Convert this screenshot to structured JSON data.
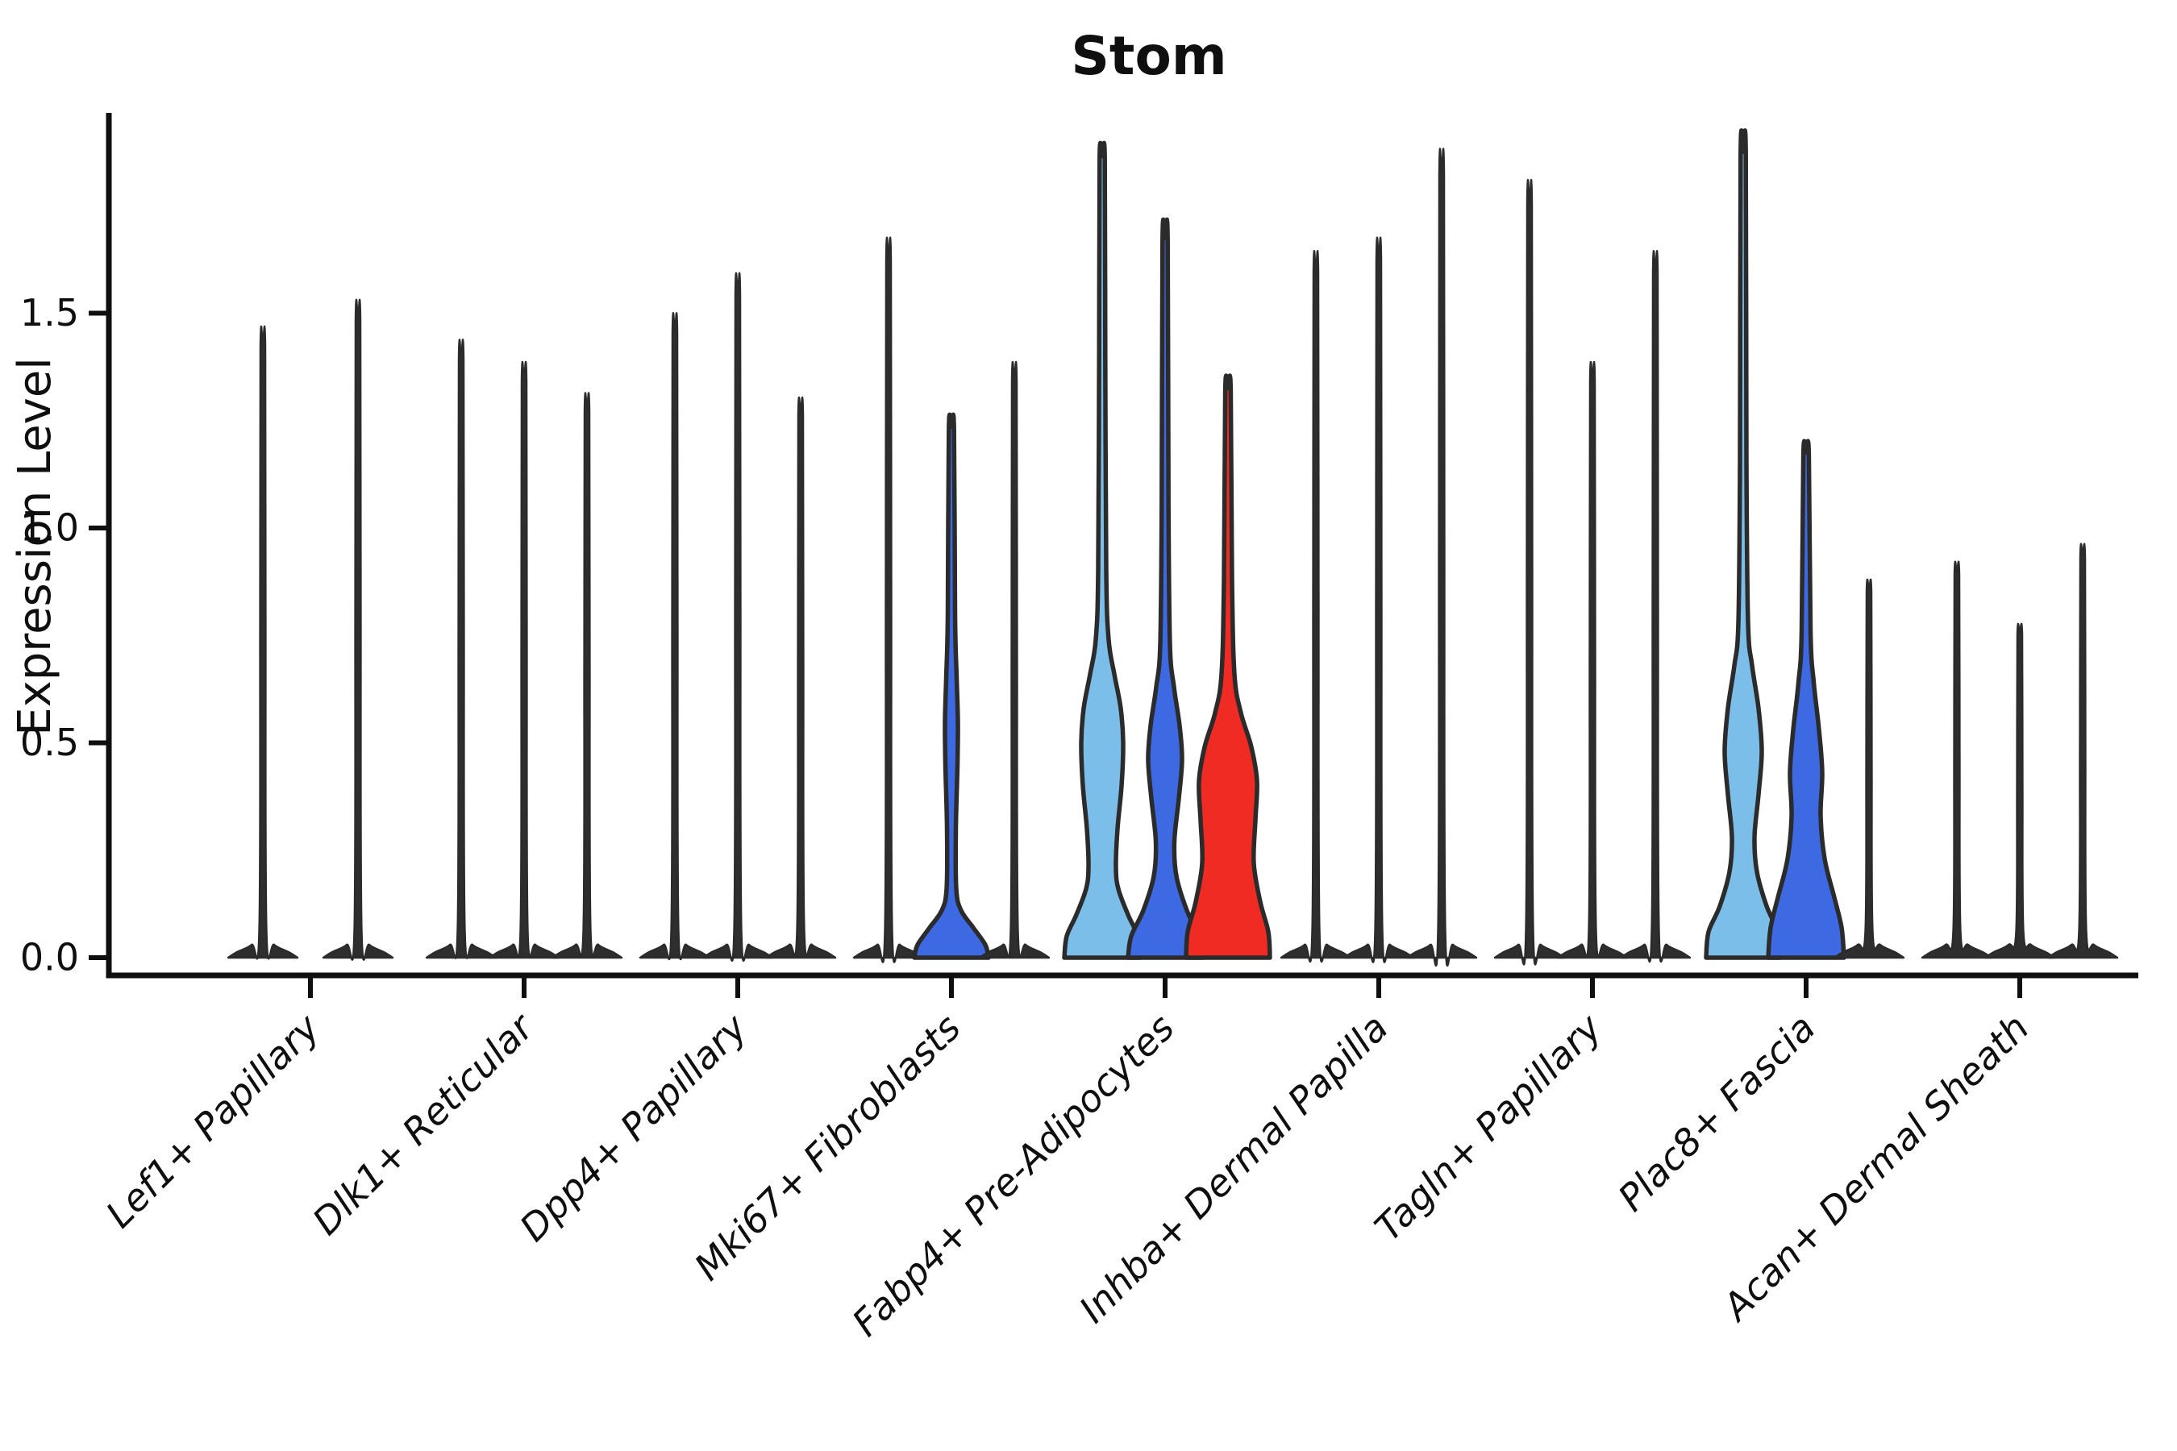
{
  "chart_data": {
    "type": "violin",
    "title": "Stom",
    "xlabel": "",
    "ylabel": "Expression Level",
    "ylim": [
      -0.04,
      1.97
    ],
    "yticks": [
      0.0,
      0.5,
      1.0,
      1.5
    ],
    "ytick_labels": [
      "0.0",
      "0.5",
      "1.0",
      "1.5"
    ],
    "grid": false,
    "legend": "none",
    "xtick_rotation_degrees": 45,
    "categories": [
      "Lef1+ Papillary",
      "Dlk1+ Reticular",
      "Dpp4+ Papillary",
      "Mki67+ Fibroblasts",
      "Fabp4+ Pre-Adipocytes",
      "Inhba+ Dermal Papilla",
      "Tagln+ Papillary",
      "Plac8+ Fascia",
      "Acan+ Dermal Sheath"
    ],
    "colors": {
      "lightblue": "#7CBEEA",
      "blue": "#3D6AE2",
      "red": "#EF2B23",
      "ink": "#2E2E2E",
      "axis": "#0f0f0f"
    },
    "groups": [
      {
        "label": "Lef1+ Papillary",
        "violins": [
          {
            "max": 1.42,
            "type": "thin",
            "color_key": "ink"
          },
          {
            "max": 1.48,
            "type": "thin",
            "color_key": "ink"
          }
        ]
      },
      {
        "label": "Dlk1+ Reticular",
        "violins": [
          {
            "max": 1.39,
            "type": "thin",
            "color_key": "ink"
          },
          {
            "max": 1.34,
            "type": "thin",
            "color_key": "ink"
          },
          {
            "max": 1.27,
            "type": "thin",
            "color_key": "ink"
          }
        ]
      },
      {
        "label": "Dpp4+ Papillary",
        "violins": [
          {
            "max": 1.45,
            "type": "thin",
            "color_key": "ink"
          },
          {
            "max": 1.54,
            "type": "thin",
            "color_key": "ink"
          },
          {
            "max": 1.26,
            "type": "thin",
            "color_key": "ink"
          }
        ]
      },
      {
        "label": "Mki67+ Fibroblasts",
        "violins": [
          {
            "max": 1.62,
            "type": "thin",
            "color_key": "ink"
          },
          {
            "max": 1.23,
            "type": "bulge",
            "color_key": "blue",
            "profile": [
              [
                0,
                46
              ],
              [
                0.03,
                42
              ],
              [
                0.07,
                27
              ],
              [
                0.11,
                12
              ],
              [
                0.16,
                6
              ],
              [
                0.3,
                5.5
              ],
              [
                0.45,
                7.5
              ],
              [
                0.55,
                8
              ],
              [
                0.65,
                6.5
              ],
              [
                0.8,
                4.5
              ],
              [
                1.23,
                3.2
              ]
            ]
          },
          {
            "max": 1.34,
            "type": "thin",
            "color_key": "ink"
          }
        ]
      },
      {
        "label": "Fabp4+ Pre-Adipocytes",
        "violins": [
          {
            "max": 1.86,
            "type": "bulge",
            "color_key": "lightblue",
            "profile": [
              [
                0,
                47
              ],
              [
                0.05,
                44
              ],
              [
                0.1,
                32
              ],
              [
                0.16,
                20
              ],
              [
                0.21,
                17
              ],
              [
                0.3,
                19
              ],
              [
                0.4,
                24
              ],
              [
                0.5,
                26
              ],
              [
                0.58,
                23
              ],
              [
                0.66,
                15
              ],
              [
                0.74,
                8
              ],
              [
                0.9,
                5
              ],
              [
                1.4,
                3.8
              ],
              [
                1.86,
                3.2
              ]
            ]
          },
          {
            "max": 1.67,
            "type": "bulge",
            "color_key": "blue",
            "profile": [
              [
                0,
                46
              ],
              [
                0.05,
                42
              ],
              [
                0.11,
                27
              ],
              [
                0.19,
                14
              ],
              [
                0.27,
                11.5
              ],
              [
                0.37,
                17
              ],
              [
                0.46,
                21
              ],
              [
                0.54,
                18
              ],
              [
                0.63,
                11
              ],
              [
                0.73,
                6
              ],
              [
                1.05,
                4.2
              ],
              [
                1.67,
                3.2
              ]
            ]
          },
          {
            "max": 1.32,
            "type": "bulge",
            "color_key": "red",
            "profile": [
              [
                0,
                52
              ],
              [
                0.06,
                50
              ],
              [
                0.13,
                40
              ],
              [
                0.22,
                32
              ],
              [
                0.32,
                34
              ],
              [
                0.41,
                36
              ],
              [
                0.49,
                29
              ],
              [
                0.57,
                16
              ],
              [
                0.66,
                8
              ],
              [
                0.88,
                5
              ],
              [
                1.32,
                3.4
              ]
            ]
          }
        ]
      },
      {
        "label": "Inhba+ Dermal Papilla",
        "violins": [
          {
            "max": 1.59,
            "type": "thin",
            "color_key": "ink"
          },
          {
            "max": 1.62,
            "type": "thin",
            "color_key": "ink"
          },
          {
            "max": 1.82,
            "type": "thin",
            "color_key": "ink"
          }
        ]
      },
      {
        "label": "Tagln+ Papillary",
        "violins": [
          {
            "max": 1.75,
            "type": "thin",
            "color_key": "ink"
          },
          {
            "max": 1.34,
            "type": "thin",
            "color_key": "ink"
          },
          {
            "max": 1.59,
            "type": "thin",
            "color_key": "ink"
          }
        ]
      },
      {
        "label": "Plac8+ Fascia",
        "violins": [
          {
            "max": 1.87,
            "type": "bulge",
            "color_key": "lightblue",
            "profile": [
              [
                0,
                46
              ],
              [
                0.06,
                43
              ],
              [
                0.12,
                29
              ],
              [
                0.2,
                17
              ],
              [
                0.28,
                14
              ],
              [
                0.38,
                19
              ],
              [
                0.48,
                23
              ],
              [
                0.58,
                19
              ],
              [
                0.68,
                11
              ],
              [
                0.78,
                6
              ],
              [
                1.15,
                4
              ],
              [
                1.87,
                3.2
              ]
            ]
          },
          {
            "max": 1.17,
            "type": "bulge",
            "color_key": "blue",
            "profile": [
              [
                0,
                47
              ],
              [
                0.07,
                44
              ],
              [
                0.14,
                35
              ],
              [
                0.23,
                23
              ],
              [
                0.33,
                18
              ],
              [
                0.43,
                20
              ],
              [
                0.53,
                16
              ],
              [
                0.64,
                9.5
              ],
              [
                0.76,
                5.5
              ],
              [
                1.17,
                3.4
              ]
            ]
          },
          {
            "max": 0.85,
            "type": "thin",
            "color_key": "ink"
          }
        ]
      },
      {
        "label": "Acan+ Dermal Sheath",
        "violins": [
          {
            "max": 0.89,
            "type": "thin",
            "color_key": "ink"
          },
          {
            "max": 0.75,
            "type": "thin",
            "color_key": "ink"
          },
          {
            "max": 0.93,
            "type": "thin",
            "color_key": "ink"
          }
        ]
      }
    ]
  }
}
